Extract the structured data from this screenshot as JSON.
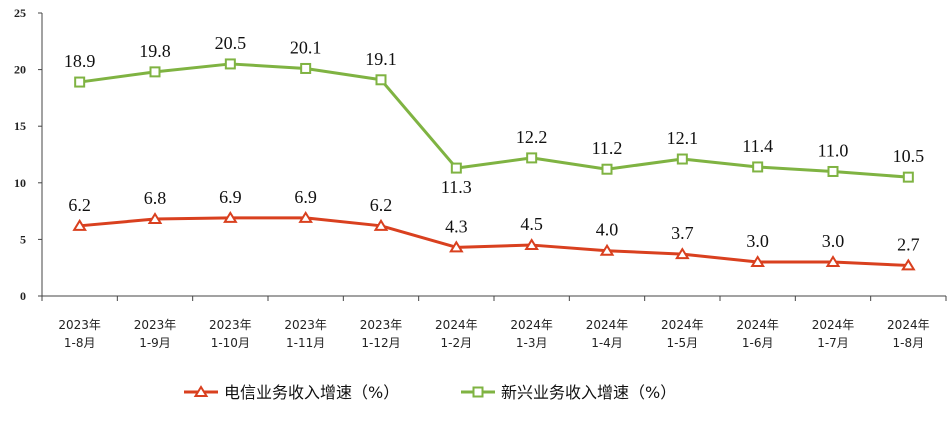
{
  "chart_data": {
    "type": "line",
    "categories": [
      [
        "2023年",
        "1-8月"
      ],
      [
        "2023年",
        "1-9月"
      ],
      [
        "2023年",
        "1-10月"
      ],
      [
        "2023年",
        "1-11月"
      ],
      [
        "2023年",
        "1-12月"
      ],
      [
        "2024年",
        "1-2月"
      ],
      [
        "2024年",
        "1-3月"
      ],
      [
        "2024年",
        "1-4月"
      ],
      [
        "2024年",
        "1-5月"
      ],
      [
        "2024年",
        "1-6月"
      ],
      [
        "2024年",
        "1-7月"
      ],
      [
        "2024年",
        "1-8月"
      ]
    ],
    "series": [
      {
        "name": "电信业务收入增速（%）",
        "color": "#d9401f",
        "marker": "triangle",
        "values": [
          6.2,
          6.8,
          6.9,
          6.9,
          6.2,
          4.3,
          4.5,
          4.0,
          3.7,
          3.0,
          3.0,
          2.7
        ],
        "labels": [
          "6.2",
          "6.8",
          "6.9",
          "6.9",
          "6.2",
          "4.3",
          "4.5",
          "4.0",
          "3.7",
          "3.0",
          "3.0",
          "2.7"
        ]
      },
      {
        "name": "新兴业务收入增速（%）",
        "color": "#7fb342",
        "marker": "square",
        "values": [
          18.9,
          19.8,
          20.5,
          20.1,
          19.1,
          11.3,
          12.2,
          11.2,
          12.1,
          11.4,
          11.0,
          10.5
        ],
        "labels": [
          "18.9",
          "19.8",
          "20.5",
          "20.1",
          "19.1",
          "11.3",
          "12.2",
          "11.2",
          "12.1",
          "11.4",
          "11.0",
          "10.5"
        ]
      }
    ],
    "ylim": [
      0,
      25
    ],
    "yticks": [
      "0",
      "5",
      "10",
      "15",
      "20",
      "25"
    ],
    "legend_position": "bottom-center"
  }
}
